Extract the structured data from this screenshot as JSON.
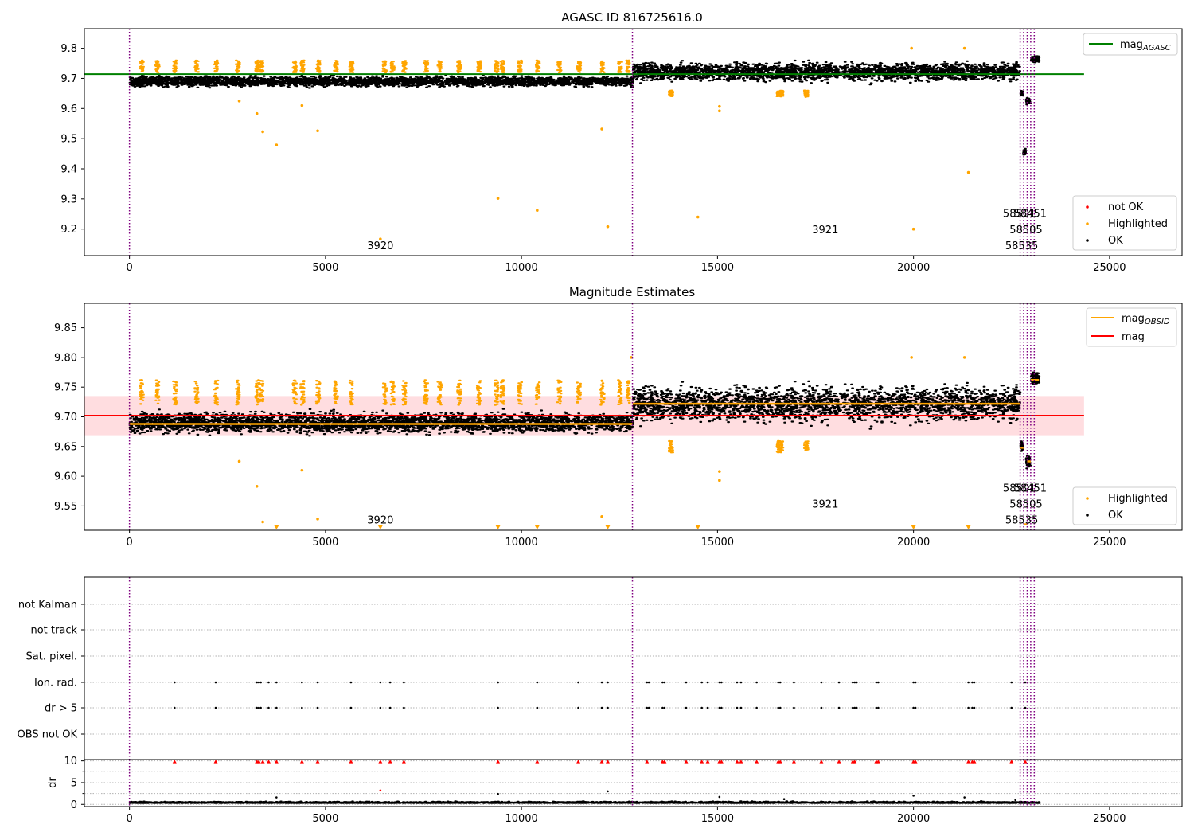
{
  "chart_data": [
    {
      "type": "scatter",
      "title": "AGASC ID 816725616.0",
      "xlabel": "",
      "ylabel": "",
      "xlim": [
        -1150,
        26850
      ],
      "ylim": [
        9.112,
        9.865
      ],
      "xticks": [
        0,
        5000,
        10000,
        15000,
        20000,
        25000
      ],
      "yticks": [
        9.2,
        9.3,
        9.4,
        9.5,
        9.6,
        9.7,
        9.8
      ],
      "legend_upper": {
        "placement": "top-right",
        "entries": [
          {
            "label": "mag",
            "sub": "AGASC",
            "color": "#008000",
            "kind": "line"
          }
        ]
      },
      "legend_lower": {
        "placement": "bottom-right",
        "entries": [
          {
            "label": "not OK",
            "color": "#ff0000",
            "kind": "dot"
          },
          {
            "label": "Highlighted",
            "color": "#ffa500",
            "kind": "dot"
          },
          {
            "label": "OK",
            "color": "#000000",
            "kind": "dot"
          }
        ]
      },
      "reference_lines": [
        {
          "name": "mag_AGASC",
          "y": 9.714,
          "x_range": [
            -1150,
            24350
          ],
          "color": "#008000"
        }
      ],
      "obsid_boundaries": [
        0,
        12830,
        22720,
        22810,
        22900,
        22990,
        23080
      ],
      "obsid_labels": [
        {
          "text": "3920",
          "x": 6400,
          "y": 9.147
        },
        {
          "text": "3921",
          "x": 17750,
          "y": 9.199
        },
        {
          "text": "58501",
          "x": 22700,
          "y": 9.253
        },
        {
          "text": "58451",
          "x": 22980,
          "y": 9.253
        },
        {
          "text": "58505",
          "x": 22870,
          "y": 9.199
        },
        {
          "text": "58535",
          "x": 22760,
          "y": 9.147
        }
      ],
      "series": [
        {
          "name": "OK",
          "color": "#000000",
          "segments": [
            {
              "x": [
                0,
                12830
              ],
              "center": 9.69,
              "spread": 0.022
            },
            {
              "x": [
                12830,
                22700
              ],
              "center": 9.722,
              "spread": 0.04
            },
            {
              "x": [
                22720,
                22780
              ],
              "center": 9.65,
              "spread": 0.012
            },
            {
              "x": [
                22790,
                22840
              ],
              "center": 9.455,
              "spread": 0.012
            },
            {
              "x": [
                22860,
                22960
              ],
              "center": 9.625,
              "spread": 0.015
            },
            {
              "x": [
                22990,
                23190
              ],
              "center": 9.765,
              "spread": 0.015
            }
          ]
        },
        {
          "name": "Highlighted",
          "color": "#ffa500",
          "spikes_x": [
            300,
            700,
            1150,
            1700,
            2200,
            2750,
            3250,
            3350,
            4200,
            4400,
            4800,
            5250,
            5650,
            6500,
            6700,
            7000,
            7550,
            7900,
            8400,
            8900,
            9350,
            9500,
            9950,
            10400,
            10950,
            11450,
            12050,
            12500,
            12700
          ],
          "spike_top": 9.76,
          "isolated": [
            {
              "x": 3250,
              "y": 9.583
            },
            {
              "x": 3400,
              "y": 9.523
            },
            {
              "x": 3750,
              "y": 9.479
            },
            {
              "x": 4800,
              "y": 9.526
            },
            {
              "x": 4400,
              "y": 9.61
            },
            {
              "x": 6400,
              "y": 9.167
            },
            {
              "x": 9400,
              "y": 9.302
            },
            {
              "x": 10400,
              "y": 9.262
            },
            {
              "x": 12050,
              "y": 9.532
            },
            {
              "x": 12200,
              "y": 9.208
            },
            {
              "x": 14500,
              "y": 9.24
            },
            {
              "x": 15050,
              "y": 9.607
            },
            {
              "x": 15050,
              "y": 9.592
            },
            {
              "x": 20000,
              "y": 9.2
            },
            {
              "x": 21400,
              "y": 9.388
            },
            {
              "x": 2800,
              "y": 9.625
            },
            {
              "x": 13800,
              "y": 9.645
            },
            {
              "x": 16550,
              "y": 9.65
            },
            {
              "x": 17250,
              "y": 9.64
            },
            {
              "x": 19950,
              "y": 9.8
            },
            {
              "x": 21300,
              "y": 9.8
            }
          ]
        },
        {
          "name": "not OK",
          "color": "#ff0000",
          "values": []
        }
      ]
    },
    {
      "type": "scatter",
      "title": "Magnitude Estimates",
      "xlabel": "",
      "ylabel": "",
      "xlim": [
        -1150,
        26850
      ],
      "ylim": [
        9.509,
        9.891
      ],
      "xticks": [
        0,
        5000,
        10000,
        15000,
        20000,
        25000
      ],
      "yticks": [
        9.55,
        9.6,
        9.65,
        9.7,
        9.75,
        9.8,
        9.85
      ],
      "legend_upper": {
        "placement": "top-right",
        "entries": [
          {
            "label": "mag",
            "sub": "OBSID",
            "color": "#ffa500",
            "kind": "line"
          },
          {
            "label": "mag",
            "sub": "",
            "color": "#ff0000",
            "kind": "line"
          }
        ]
      },
      "legend_lower": {
        "placement": "bottom-right",
        "entries": [
          {
            "label": "Highlighted",
            "color": "#ffa500",
            "kind": "dot"
          },
          {
            "label": "OK",
            "color": "#000000",
            "kind": "dot"
          }
        ]
      },
      "mag": {
        "value": 9.702,
        "band": [
          9.669,
          9.735
        ],
        "x_range": [
          -1150,
          24350
        ]
      },
      "mag_obsid": [
        {
          "x": [
            0,
            12830
          ],
          "y": 9.688
        },
        {
          "x": [
            12830,
            22720
          ],
          "y": 9.722
        },
        {
          "x": [
            22720,
            22810
          ],
          "y": 9.648
        },
        {
          "x": [
            22810,
            22900
          ],
          "y": 9.519
        },
        {
          "x": [
            22900,
            22990
          ],
          "y": 9.625
        },
        {
          "x": [
            22990,
            23200
          ],
          "y": 9.762
        }
      ],
      "obsid_boundaries": [
        0,
        12830,
        22720,
        22810,
        22900,
        22990,
        23080
      ],
      "obsid_labels": [
        {
          "text": "3920",
          "x": 6400,
          "y": 9.527
        },
        {
          "text": "3921",
          "x": 17750,
          "y": 9.554
        },
        {
          "text": "58501",
          "x": 22700,
          "y": 9.581
        },
        {
          "text": "58451",
          "x": 22980,
          "y": 9.581
        },
        {
          "text": "58505",
          "x": 22870,
          "y": 9.554
        },
        {
          "text": "58535",
          "x": 22760,
          "y": 9.527
        }
      ],
      "out_of_range_markers_x": [
        3750,
        6400,
        9400,
        10400,
        12200,
        14500,
        20000,
        21400
      ],
      "isolated_highlighted": [
        {
          "x": 3250,
          "y": 9.583
        },
        {
          "x": 4400,
          "y": 9.61
        },
        {
          "x": 2800,
          "y": 9.625
        },
        {
          "x": 3400,
          "y": 9.523
        },
        {
          "x": 4800,
          "y": 9.528
        },
        {
          "x": 12050,
          "y": 9.532
        },
        {
          "x": 15050,
          "y": 9.608
        },
        {
          "x": 15050,
          "y": 9.593
        },
        {
          "x": 19950,
          "y": 9.8
        },
        {
          "x": 21300,
          "y": 9.8
        },
        {
          "x": 12800,
          "y": 9.8
        }
      ]
    },
    {
      "type": "scatter",
      "title": "",
      "xlabel": "",
      "ylabel": "",
      "xlim": [
        -1150,
        26850
      ],
      "ytick_labels": [
        "not Kalman",
        "not track",
        "Sat. pixel.",
        "Ion. rad.",
        "dr > 5",
        "OBS not OK"
      ],
      "flags": {
        "Ion. rad.": [
          1150,
          2200,
          3250,
          3300,
          3350,
          3550,
          3750,
          4400,
          4800,
          5650,
          6400,
          6650,
          7000,
          9400,
          10400,
          11450,
          12050,
          12200,
          13200,
          13250,
          13600,
          13650,
          14200,
          14600,
          14750,
          15050,
          15100,
          15500,
          15600,
          16000,
          16550,
          16600,
          16950,
          17650,
          18100,
          18450,
          18500,
          18550,
          19050,
          19100,
          20000,
          20050,
          21400,
          21500,
          21550,
          22500,
          22850
        ],
        "dr > 5": [
          1150,
          2200,
          3250,
          3300,
          3350,
          3550,
          3750,
          4400,
          4800,
          5650,
          6400,
          6650,
          7000,
          9400,
          10400,
          11450,
          12050,
          12200,
          13200,
          13250,
          13600,
          13650,
          14200,
          14600,
          14750,
          15050,
          15100,
          15500,
          15600,
          16000,
          16550,
          16600,
          16950,
          17650,
          18100,
          18450,
          18500,
          18550,
          19050,
          19100,
          20000,
          20050,
          21400,
          21500,
          21550,
          22500,
          22850
        ]
      },
      "obsid_boundaries": [
        0,
        12830,
        22720,
        22810,
        22900,
        22990,
        23080
      ]
    },
    {
      "type": "scatter",
      "title": "",
      "xlabel": "",
      "ylabel": "dr",
      "xlim": [
        -1150,
        26850
      ],
      "ylim": [
        -0.5,
        10.3
      ],
      "xticks": [
        0,
        5000,
        10000,
        15000,
        20000,
        25000
      ],
      "yticks": [
        0,
        5,
        10
      ],
      "minor_yticks": [
        2.5,
        7.5
      ],
      "baseline": {
        "x": [
          0,
          23200
        ],
        "y": 0.3
      },
      "clipped_markers_x": [
        1150,
        2200,
        3250,
        3300,
        3400,
        3550,
        3750,
        4400,
        4800,
        5650,
        6400,
        6650,
        7000,
        9400,
        10400,
        11450,
        12050,
        12200,
        13200,
        13600,
        13650,
        14200,
        14600,
        14750,
        15050,
        15100,
        15500,
        15600,
        16000,
        16550,
        16600,
        16950,
        17650,
        18100,
        18450,
        18500,
        19050,
        19100,
        20000,
        20050,
        21400,
        21500,
        21550,
        22500,
        22850
      ],
      "scattered_points": [
        {
          "x": 3750,
          "y": 1.6
        },
        {
          "x": 6400,
          "y": 3.2
        },
        {
          "x": 9400,
          "y": 2.4
        },
        {
          "x": 12200,
          "y": 3.0
        },
        {
          "x": 15050,
          "y": 1.7
        },
        {
          "x": 20000,
          "y": 2.0
        },
        {
          "x": 21300,
          "y": 1.6
        },
        {
          "x": 16700,
          "y": 1.2
        },
        {
          "x": 22600,
          "y": 1.0
        }
      ],
      "obsid_boundaries": [
        0,
        12830,
        22720,
        22810,
        22900,
        22990,
        23080
      ]
    }
  ]
}
